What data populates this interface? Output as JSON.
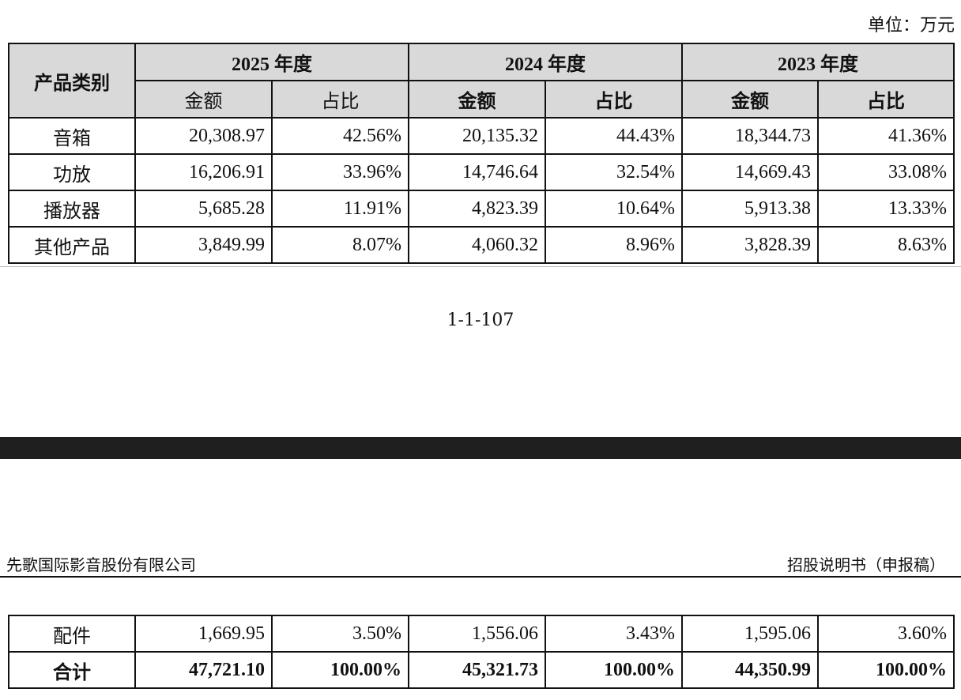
{
  "unit_label": "单位：万元",
  "table": {
    "category_header": "产品类别",
    "years": [
      "2025 年度",
      "2024 年度",
      "2023 年度"
    ],
    "amount_label": "金额",
    "share_label": "占比",
    "rows_top": [
      {
        "category": "音箱",
        "values": [
          "20,308.97",
          "42.56%",
          "20,135.32",
          "44.43%",
          "18,344.73",
          "41.36%"
        ]
      },
      {
        "category": "功放",
        "values": [
          "16,206.91",
          "33.96%",
          "14,746.64",
          "32.54%",
          "14,669.43",
          "33.08%"
        ]
      },
      {
        "category": "播放器",
        "values": [
          "5,685.28",
          "11.91%",
          "4,823.39",
          "10.64%",
          "5,913.38",
          "13.33%"
        ]
      },
      {
        "category": "其他产品",
        "values": [
          "3,849.99",
          "8.07%",
          "4,060.32",
          "8.96%",
          "3,828.39",
          "8.63%"
        ]
      }
    ],
    "rows_bottom": [
      {
        "category": "配件",
        "values": [
          "1,669.95",
          "3.50%",
          "1,556.06",
          "3.43%",
          "1,595.06",
          "3.60%"
        ]
      },
      {
        "category": "合计",
        "values": [
          "47,721.10",
          "100.00%",
          "45,321.73",
          "100.00%",
          "44,350.99",
          "100.00%"
        ]
      }
    ]
  },
  "page_number": "1-1-107",
  "running_header": {
    "company": "先歌国际影音股份有限公司",
    "doc_type": "招股说明书（申报稿）"
  }
}
